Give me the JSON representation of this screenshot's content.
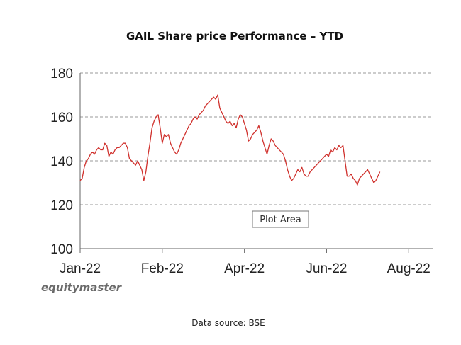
{
  "chart_data": {
    "type": "line",
    "title": "GAIL Share price Performance – YTD",
    "xlabel": "",
    "ylabel": "",
    "ylim": [
      100,
      180
    ],
    "yticks": [
      100,
      120,
      140,
      160,
      180
    ],
    "xtick_labels": [
      "Jan-22",
      "Feb-22",
      "Apr-22",
      "Jun-22",
      "Aug-22"
    ],
    "xtick_positions": [
      0,
      40,
      80,
      120,
      160
    ],
    "xlim": [
      0,
      172
    ],
    "grid": "horizontal-dashed",
    "line_color": "#d0312d",
    "series": [
      {
        "name": "GAIL",
        "values": [
          131,
          132,
          137,
          140,
          141,
          143,
          144,
          143,
          145,
          146,
          145,
          145,
          148,
          147,
          142,
          144,
          143,
          145,
          146,
          146,
          147,
          148,
          148,
          146,
          141,
          140,
          139,
          138,
          140,
          138,
          136,
          131,
          135,
          142,
          148,
          155,
          158,
          160,
          161,
          155,
          148,
          152,
          151,
          152,
          148,
          146,
          144,
          143,
          145,
          148,
          150,
          152,
          154,
          156,
          157,
          159,
          160,
          159,
          161,
          162,
          163,
          165,
          166,
          167,
          168,
          169,
          168,
          170,
          164,
          162,
          160,
          158,
          157,
          158,
          156,
          157,
          155,
          159,
          161,
          160,
          157,
          154,
          149,
          150,
          152,
          153,
          154,
          156,
          153,
          149,
          146,
          143,
          147,
          150,
          149,
          147,
          146,
          145,
          144,
          143,
          140,
          136,
          133,
          131,
          132,
          134,
          136,
          135,
          137,
          134,
          133,
          133,
          135,
          136,
          137,
          138,
          139,
          140,
          141,
          142,
          143,
          142,
          145,
          144,
          146,
          145,
          147,
          146,
          147,
          140,
          133,
          133,
          134,
          132,
          131,
          129,
          132,
          133,
          134,
          135,
          136,
          134,
          132,
          130,
          131,
          133,
          135
        ]
      }
    ],
    "annotations": [
      "Plot Area"
    ]
  },
  "brand": "equitymaster",
  "source": "Data source: BSE"
}
